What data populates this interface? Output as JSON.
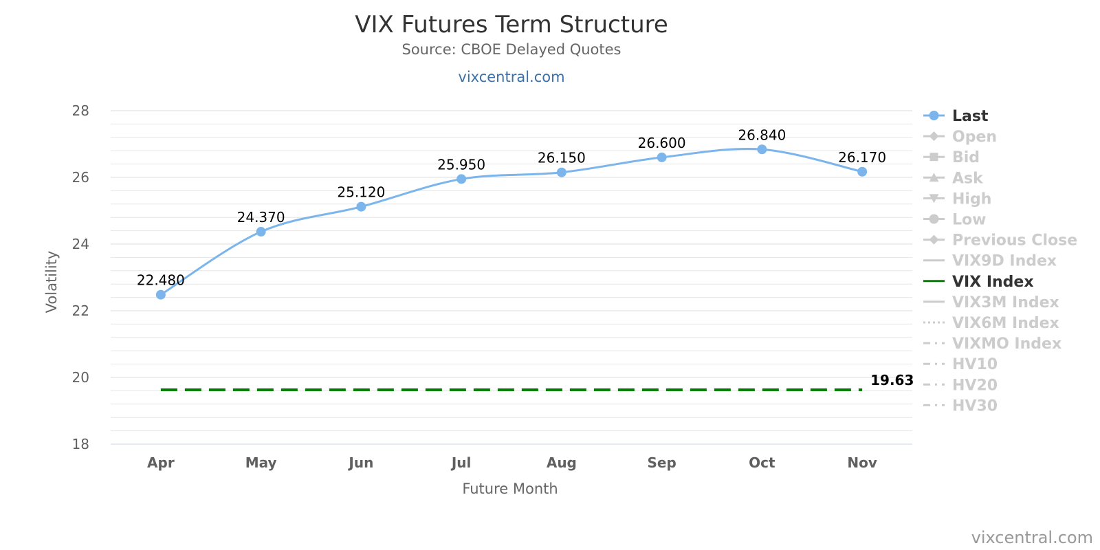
{
  "header": {
    "title": "VIX Futures Term Structure",
    "subtitle": "Source: CBOE Delayed Quotes",
    "link": "vixcentral.com"
  },
  "credit": "vixcentral.com",
  "colors": {
    "last": "#7cb5ec",
    "vix": "#008000",
    "inactive": "#cccccc",
    "active_text": "#333333",
    "grid": "#e6e6e6"
  },
  "chart_data": {
    "type": "line",
    "xlabel": "Future Month",
    "ylabel": "Volatility",
    "ylim": [
      18,
      28
    ],
    "yticks": [
      18,
      20,
      22,
      24,
      26,
      28
    ],
    "categories": [
      "Apr",
      "May",
      "Jun",
      "Jul",
      "Aug",
      "Sep",
      "Oct",
      "Nov"
    ],
    "grid": true,
    "legend_position": "right",
    "series": [
      {
        "name": "Last",
        "values": [
          22.48,
          24.37,
          25.12,
          25.95,
          26.15,
          26.6,
          26.84,
          26.17
        ],
        "labels": [
          "22.480",
          "24.370",
          "25.120",
          "25.950",
          "26.150",
          "26.600",
          "26.840",
          "26.170"
        ],
        "style": "spline-markers"
      },
      {
        "name": "VIX Index",
        "values": [
          19.63,
          19.63,
          19.63,
          19.63,
          19.63,
          19.63,
          19.63,
          19.63
        ],
        "end_label": "19.63",
        "style": "dashed"
      }
    ],
    "legend": [
      {
        "name": "Last",
        "active": true,
        "symbol": "circle-line"
      },
      {
        "name": "Open",
        "active": false,
        "symbol": "diamond-line"
      },
      {
        "name": "Bid",
        "active": false,
        "symbol": "square-line"
      },
      {
        "name": "Ask",
        "active": false,
        "symbol": "triangle-line"
      },
      {
        "name": "High",
        "active": false,
        "symbol": "triangle-down-line"
      },
      {
        "name": "Low",
        "active": false,
        "symbol": "circle-line"
      },
      {
        "name": "Previous Close",
        "active": false,
        "symbol": "diamond-line"
      },
      {
        "name": "VIX9D Index",
        "active": false,
        "symbol": "solid"
      },
      {
        "name": "VIX Index",
        "active": true,
        "symbol": "solid"
      },
      {
        "name": "VIX3M Index",
        "active": false,
        "symbol": "solid"
      },
      {
        "name": "VIX6M Index",
        "active": false,
        "symbol": "dotted"
      },
      {
        "name": "VIXMO Index",
        "active": false,
        "symbol": "dashdot"
      },
      {
        "name": "HV10",
        "active": false,
        "symbol": "dashdot"
      },
      {
        "name": "HV20",
        "active": false,
        "symbol": "dashdot"
      },
      {
        "name": "HV30",
        "active": false,
        "symbol": "dashdot"
      }
    ]
  }
}
